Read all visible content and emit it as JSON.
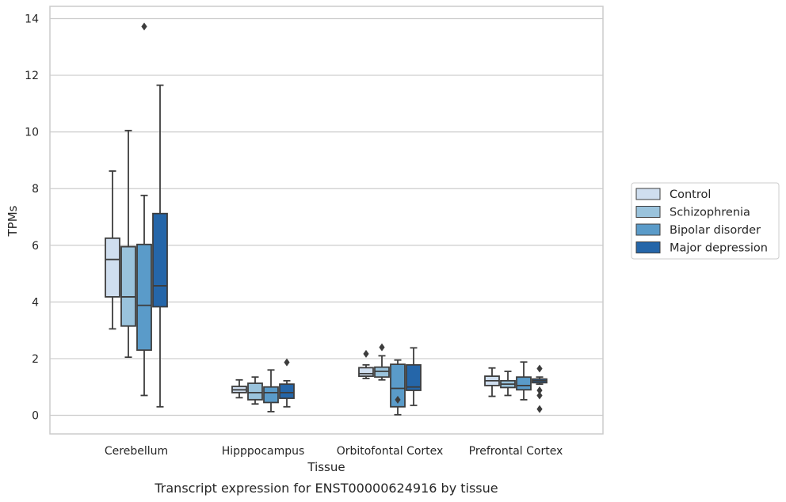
{
  "chart_data": {
    "type": "box",
    "xlabel": "Tissue",
    "ylabel": "TPMs",
    "caption": "Transcript expression for ENST00000624916 by tissue",
    "ylim": [
      -0.65,
      14.4
    ],
    "yticks": [
      0,
      2,
      4,
      6,
      8,
      10,
      12,
      14
    ],
    "grid": "horizontal",
    "legend_position": "right",
    "categories": [
      "Cerebellum",
      "Hipppocampus",
      "Orbitofontal Cortex",
      "Prefrontal Cortex"
    ],
    "series": [
      {
        "name": "Control",
        "color": "#cfdeef",
        "boxes": [
          {
            "whislo": 3.05,
            "q1": 4.18,
            "med": 5.5,
            "q3": 6.25,
            "whishi": 8.62,
            "fliers": []
          },
          {
            "whislo": 0.62,
            "q1": 0.8,
            "med": 0.9,
            "q3": 1.02,
            "whishi": 1.25,
            "fliers": []
          },
          {
            "whislo": 1.3,
            "q1": 1.38,
            "med": 1.47,
            "q3": 1.68,
            "whishi": 1.78,
            "fliers": [
              2.17
            ]
          },
          {
            "whislo": 0.67,
            "q1": 1.05,
            "med": 1.22,
            "q3": 1.38,
            "whishi": 1.67,
            "fliers": []
          }
        ]
      },
      {
        "name": "Schizophrenia",
        "color": "#9ac3dc",
        "boxes": [
          {
            "whislo": 2.05,
            "q1": 3.15,
            "med": 4.18,
            "q3": 5.95,
            "whishi": 10.05,
            "fliers": []
          },
          {
            "whislo": 0.4,
            "q1": 0.55,
            "med": 0.8,
            "q3": 1.13,
            "whishi": 1.35,
            "fliers": []
          },
          {
            "whislo": 1.25,
            "q1": 1.35,
            "med": 1.55,
            "q3": 1.7,
            "whishi": 2.1,
            "fliers": [
              2.4
            ]
          },
          {
            "whislo": 0.7,
            "q1": 0.98,
            "med": 1.1,
            "q3": 1.22,
            "whishi": 1.55,
            "fliers": []
          }
        ]
      },
      {
        "name": "Bipolar disorder",
        "color": "#5a9bc9",
        "boxes": [
          {
            "whislo": 0.7,
            "q1": 2.3,
            "med": 3.88,
            "q3": 6.03,
            "whishi": 7.76,
            "fliers": [
              13.72
            ]
          },
          {
            "whislo": 0.13,
            "q1": 0.45,
            "med": 0.8,
            "q3": 1.0,
            "whishi": 1.6,
            "fliers": []
          },
          {
            "whislo": 0.02,
            "q1": 0.3,
            "med": 0.95,
            "q3": 1.8,
            "whishi": 1.95,
            "fliers": [
              0.55
            ]
          },
          {
            "whislo": 0.55,
            "q1": 0.9,
            "med": 1.05,
            "q3": 1.35,
            "whishi": 1.88,
            "fliers": []
          }
        ]
      },
      {
        "name": "Major depression",
        "color": "#2566a9",
        "boxes": [
          {
            "whislo": 0.3,
            "q1": 3.83,
            "med": 4.57,
            "q3": 7.12,
            "whishi": 11.65,
            "fliers": []
          },
          {
            "whislo": 0.3,
            "q1": 0.6,
            "med": 0.8,
            "q3": 1.1,
            "whishi": 1.22,
            "fliers": [
              1.87
            ]
          },
          {
            "whislo": 0.35,
            "q1": 0.88,
            "med": 1.0,
            "q3": 1.78,
            "whishi": 2.38,
            "fliers": []
          },
          {
            "whislo": 1.1,
            "q1": 1.15,
            "med": 1.22,
            "q3": 1.28,
            "whishi": 1.35,
            "fliers": [
              1.65,
              0.88,
              0.7,
              0.22
            ]
          }
        ]
      }
    ]
  }
}
